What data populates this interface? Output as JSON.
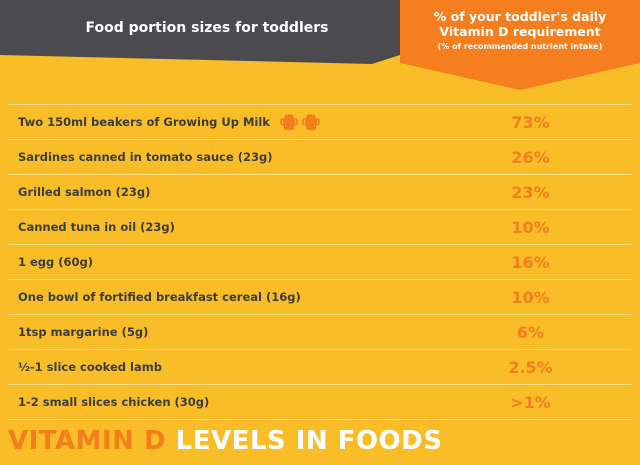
{
  "header": {
    "left_title": "Food portion sizes for toddlers",
    "right_title_line1": "% of your toddler's daily",
    "right_title_line2": "Vitamin D requirement",
    "right_subtitle": "(% of recommended nutrient intake)"
  },
  "rows": [
    {
      "food": "Two 150ml beakers of Growing Up Milk",
      "percent": "73%"
    },
    {
      "food": "Sardines canned in tomato sauce (23g)",
      "percent": "26%"
    },
    {
      "food": "Grilled salmon (23g)",
      "percent": "23%"
    },
    {
      "food": "Canned tuna in oil (23g)",
      "percent": "10%"
    },
    {
      "food": "1 egg (60g)",
      "percent": "16%"
    },
    {
      "food": "One bowl of fortified breakfast cereal (16g)",
      "percent": "10%"
    },
    {
      "food": "1tsp margarine (5g)",
      "percent": "6%"
    },
    {
      "food": "½-1 slice cooked lamb",
      "percent": "2.5%"
    },
    {
      "food": "1-2 small slices chicken (30g)",
      "percent": ">1%"
    }
  ],
  "footer": {
    "title_part1": "VITAMIN D",
    "title_part2": "LEVELS IN FOODS"
  },
  "icons": {
    "beaker": "beaker-icon"
  },
  "colors": {
    "background": "#f9be27",
    "accent_orange": "#f57e1e",
    "header_gray": "#4b4b4f"
  }
}
